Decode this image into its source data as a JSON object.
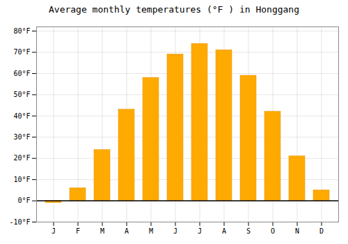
{
  "chart_data": {
    "type": "bar",
    "title": "Average monthly temperatures (°F ) in Honggang",
    "categories": [
      "J",
      "F",
      "M",
      "A",
      "M",
      "J",
      "J",
      "A",
      "S",
      "O",
      "N",
      "D"
    ],
    "values": [
      -1,
      6,
      24,
      43,
      58,
      69,
      74,
      71,
      59,
      42,
      21,
      5
    ],
    "color": "#FFAA00",
    "ylim": [
      -10,
      82
    ],
    "yticks": [
      {
        "value": -10,
        "label": "-10°F"
      },
      {
        "value": 0,
        "label": "0°F"
      },
      {
        "value": 10,
        "label": "10°F"
      },
      {
        "value": 20,
        "label": "20°F"
      },
      {
        "value": 30,
        "label": "30°F"
      },
      {
        "value": 40,
        "label": "40°F"
      },
      {
        "value": 50,
        "label": "50°F"
      },
      {
        "value": 60,
        "label": "60°F"
      },
      {
        "value": 70,
        "label": "70°F"
      },
      {
        "value": 80,
        "label": "80°F"
      }
    ],
    "grid": true
  }
}
